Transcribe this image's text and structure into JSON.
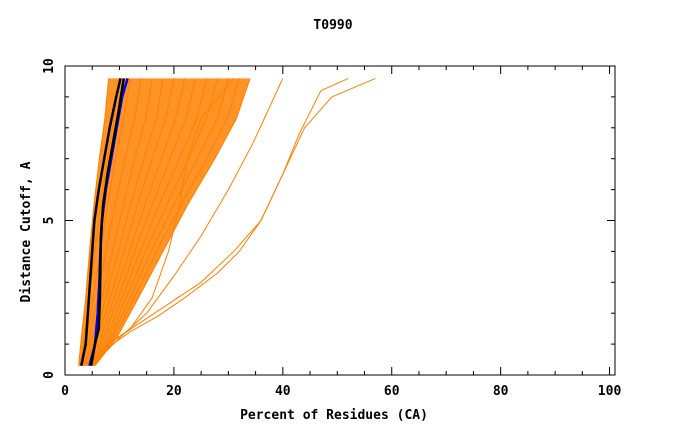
{
  "chart_data": {
    "type": "line",
    "title": "T0990",
    "xlabel": "Percent of Residues (CA)",
    "ylabel": "Distance Cutoff, A",
    "xlim": [
      0,
      101
    ],
    "ylim": [
      0,
      10
    ],
    "x_ticks": [
      0,
      20,
      40,
      60,
      80,
      100
    ],
    "y_ticks": [
      0,
      5,
      10
    ],
    "x_tick_labels": [
      "0",
      "20",
      "40",
      "60",
      "80",
      "100"
    ],
    "y_tick_labels": [
      "0",
      "5",
      "10"
    ],
    "y_max_curve": 9.6,
    "colors": {
      "bulk": "#ff8000",
      "highlight_black": "#000000",
      "highlight_blue": "#0000ff",
      "axis": "#000000",
      "background": "#ffffff"
    },
    "series": [
      {
        "name": "orange-curve-1",
        "color": "#ff8000",
        "width": 1,
        "points": [
          [
            2.5,
            0.3
          ],
          [
            3.0,
            1.2
          ],
          [
            3.8,
            2.5
          ],
          [
            4.5,
            4.0
          ],
          [
            5.3,
            5.5
          ],
          [
            6.3,
            7.0
          ],
          [
            7.3,
            8.3
          ],
          [
            8.0,
            9.6
          ]
        ]
      },
      {
        "name": "orange-curve-2",
        "color": "#ff8000",
        "width": 1,
        "points": [
          [
            2.8,
            0.3
          ],
          [
            3.5,
            1.2
          ],
          [
            4.5,
            2.5
          ],
          [
            5.5,
            4.0
          ],
          [
            6.5,
            5.5
          ],
          [
            7.8,
            7.0
          ],
          [
            9.0,
            8.3
          ],
          [
            10.0,
            9.6
          ]
        ]
      },
      {
        "name": "orange-curve-3",
        "color": "#ff8000",
        "width": 1,
        "points": [
          [
            3.0,
            0.3
          ],
          [
            4.0,
            1.2
          ],
          [
            5.2,
            2.5
          ],
          [
            6.5,
            4.0
          ],
          [
            7.8,
            5.5
          ],
          [
            9.3,
            7.0
          ],
          [
            10.8,
            8.3
          ],
          [
            12.0,
            9.6
          ]
        ]
      },
      {
        "name": "orange-curve-4",
        "color": "#ff8000",
        "width": 1,
        "points": [
          [
            3.2,
            0.3
          ],
          [
            4.5,
            1.2
          ],
          [
            6.0,
            2.5
          ],
          [
            7.5,
            4.0
          ],
          [
            9.2,
            5.5
          ],
          [
            11.0,
            7.0
          ],
          [
            12.8,
            8.3
          ],
          [
            14.0,
            9.6
          ]
        ]
      },
      {
        "name": "orange-curve-5",
        "color": "#ff8000",
        "width": 1,
        "points": [
          [
            3.5,
            0.3
          ],
          [
            5.0,
            1.2
          ],
          [
            6.8,
            2.5
          ],
          [
            8.7,
            4.0
          ],
          [
            10.7,
            5.5
          ],
          [
            12.8,
            7.0
          ],
          [
            14.8,
            8.3
          ],
          [
            16.0,
            9.6
          ]
        ]
      },
      {
        "name": "orange-curve-6",
        "color": "#ff8000",
        "width": 1,
        "points": [
          [
            3.7,
            0.3
          ],
          [
            5.5,
            1.2
          ],
          [
            7.5,
            2.5
          ],
          [
            9.8,
            4.0
          ],
          [
            12.0,
            5.5
          ],
          [
            14.5,
            7.0
          ],
          [
            16.8,
            8.3
          ],
          [
            18.0,
            9.6
          ]
        ]
      },
      {
        "name": "orange-curve-7",
        "color": "#ff8000",
        "width": 1,
        "points": [
          [
            4.0,
            0.3
          ],
          [
            6.0,
            1.2
          ],
          [
            8.3,
            2.5
          ],
          [
            10.8,
            4.0
          ],
          [
            13.3,
            5.5
          ],
          [
            16.0,
            7.0
          ],
          [
            18.5,
            8.3
          ],
          [
            20.0,
            9.6
          ]
        ]
      },
      {
        "name": "orange-curve-8",
        "color": "#ff8000",
        "width": 1,
        "points": [
          [
            4.2,
            0.3
          ],
          [
            6.5,
            1.2
          ],
          [
            9.0,
            2.5
          ],
          [
            11.8,
            4.0
          ],
          [
            14.7,
            5.5
          ],
          [
            17.7,
            7.0
          ],
          [
            20.3,
            8.3
          ],
          [
            22.0,
            9.6
          ]
        ]
      },
      {
        "name": "orange-curve-9",
        "color": "#ff8000",
        "width": 1,
        "points": [
          [
            4.5,
            0.3
          ],
          [
            7.0,
            1.2
          ],
          [
            9.8,
            2.5
          ],
          [
            12.8,
            4.0
          ],
          [
            16.0,
            5.5
          ],
          [
            19.3,
            7.0
          ],
          [
            22.2,
            8.3
          ],
          [
            24.0,
            9.6
          ]
        ]
      },
      {
        "name": "orange-curve-10",
        "color": "#ff8000",
        "width": 1,
        "points": [
          [
            4.8,
            0.3
          ],
          [
            7.5,
            1.2
          ],
          [
            10.5,
            2.5
          ],
          [
            13.8,
            4.0
          ],
          [
            17.3,
            5.5
          ],
          [
            21.0,
            7.0
          ],
          [
            24.2,
            8.3
          ],
          [
            26.0,
            9.6
          ]
        ]
      },
      {
        "name": "orange-curve-11",
        "color": "#ff8000",
        "width": 1,
        "points": [
          [
            5.0,
            0.3
          ],
          [
            8.0,
            1.2
          ],
          [
            11.2,
            2.5
          ],
          [
            14.8,
            4.0
          ],
          [
            18.7,
            5.5
          ],
          [
            22.7,
            7.0
          ],
          [
            26.0,
            8.3
          ],
          [
            28.0,
            9.6
          ]
        ]
      },
      {
        "name": "orange-curve-12",
        "color": "#ff8000",
        "width": 1,
        "points": [
          [
            5.2,
            0.3
          ],
          [
            8.5,
            1.2
          ],
          [
            12.0,
            2.5
          ],
          [
            15.8,
            4.0
          ],
          [
            20.0,
            5.5
          ],
          [
            24.3,
            7.0
          ],
          [
            28.0,
            8.3
          ],
          [
            30.0,
            9.6
          ]
        ]
      },
      {
        "name": "orange-curve-13",
        "color": "#ff8000",
        "width": 1,
        "points": [
          [
            5.5,
            0.3
          ],
          [
            9.0,
            1.2
          ],
          [
            12.7,
            2.5
          ],
          [
            16.8,
            4.0
          ],
          [
            21.3,
            5.5
          ],
          [
            26.0,
            7.0
          ],
          [
            29.8,
            8.3
          ],
          [
            32.0,
            9.6
          ]
        ]
      },
      {
        "name": "orange-curve-14",
        "color": "#ff8000",
        "width": 1,
        "points": [
          [
            5.5,
            0.3
          ],
          [
            9.5,
            1.2
          ],
          [
            13.5,
            2.5
          ],
          [
            18.0,
            4.0
          ],
          [
            22.5,
            5.5
          ],
          [
            27.5,
            7.0
          ],
          [
            31.5,
            8.3
          ],
          [
            34.0,
            9.6
          ]
        ]
      },
      {
        "name": "orange-curve-15",
        "color": "#ff8000",
        "width": 1,
        "points": [
          [
            5.0,
            0.3
          ],
          [
            8.0,
            1.0
          ],
          [
            12.0,
            1.5
          ],
          [
            16.0,
            2.5
          ],
          [
            19.0,
            4.0
          ],
          [
            21.0,
            5.5
          ],
          [
            22.5,
            7.0
          ],
          [
            25.0,
            8.3
          ],
          [
            31.0,
            9.6
          ]
        ]
      },
      {
        "name": "orange-curve-16",
        "color": "#ff8000",
        "width": 1,
        "points": [
          [
            5.0,
            0.3
          ],
          [
            10.0,
            1.2
          ],
          [
            15.0,
            2.0
          ],
          [
            20.0,
            3.2
          ],
          [
            25.0,
            4.5
          ],
          [
            30.0,
            6.0
          ],
          [
            34.5,
            7.5
          ],
          [
            40.0,
            9.6
          ]
        ]
      },
      {
        "name": "orange-curve-17",
        "color": "#ff8000",
        "width": 1,
        "points": [
          [
            4.0,
            0.3
          ],
          [
            8.0,
            0.9
          ],
          [
            12.0,
            1.4
          ],
          [
            17.0,
            1.9
          ],
          [
            22.0,
            2.5
          ],
          [
            28.0,
            3.3
          ],
          [
            32.0,
            4.0
          ],
          [
            36.0,
            5.0
          ],
          [
            40.0,
            6.5
          ],
          [
            43.0,
            7.8
          ],
          [
            47.0,
            9.2
          ],
          [
            52.0,
            9.6
          ]
        ]
      },
      {
        "name": "orange-curve-18",
        "color": "#ff8000",
        "width": 1,
        "points": [
          [
            4.0,
            0.3
          ],
          [
            8.0,
            1.0
          ],
          [
            13.0,
            1.6
          ],
          [
            19.0,
            2.3
          ],
          [
            25.0,
            3.0
          ],
          [
            31.0,
            4.0
          ],
          [
            36.0,
            5.0
          ],
          [
            40.0,
            6.5
          ],
          [
            44.0,
            8.0
          ],
          [
            49.0,
            9.0
          ],
          [
            57.0,
            9.6
          ]
        ]
      },
      {
        "name": "blue-curve",
        "color": "#0000ff",
        "width": 2.5,
        "points": [
          [
            4.5,
            0.3
          ],
          [
            5.5,
            1.0
          ],
          [
            6.0,
            2.0
          ],
          [
            6.3,
            3.0
          ],
          [
            6.5,
            4.0
          ],
          [
            6.8,
            5.0
          ],
          [
            7.5,
            6.0
          ],
          [
            8.5,
            7.0
          ],
          [
            9.5,
            8.0
          ],
          [
            10.5,
            9.0
          ],
          [
            11.5,
            9.6
          ]
        ]
      },
      {
        "name": "black-curve-1",
        "color": "#000000",
        "width": 2.5,
        "points": [
          [
            3.0,
            0.3
          ],
          [
            3.8,
            1.0
          ],
          [
            4.2,
            2.0
          ],
          [
            4.6,
            3.0
          ],
          [
            5.0,
            4.0
          ],
          [
            5.4,
            5.0
          ],
          [
            6.2,
            6.0
          ],
          [
            7.2,
            7.0
          ],
          [
            8.2,
            8.0
          ],
          [
            9.4,
            9.0
          ],
          [
            10.2,
            9.6
          ]
        ]
      },
      {
        "name": "black-curve-2",
        "color": "#000000",
        "width": 2.5,
        "points": [
          [
            4.8,
            0.3
          ],
          [
            5.5,
            1.0
          ],
          [
            6.2,
            1.5
          ],
          [
            6.4,
            2.5
          ],
          [
            6.5,
            3.5
          ],
          [
            6.6,
            4.5
          ],
          [
            7.0,
            5.5
          ],
          [
            7.8,
            6.5
          ],
          [
            8.8,
            7.5
          ],
          [
            9.8,
            8.5
          ],
          [
            10.8,
            9.6
          ]
        ]
      }
    ]
  }
}
